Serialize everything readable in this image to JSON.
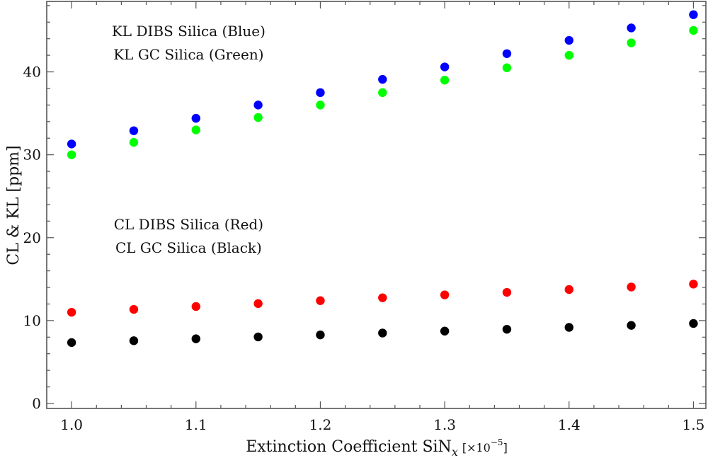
{
  "chart_data": {
    "type": "scatter",
    "title": "",
    "xlabel": "Extinction Coefficient  SiN",
    "xlabel_sub": "x",
    "xlabel_scale": "[×10",
    "xlabel_scale_exp": "−5",
    "xlabel_scale_close": "]",
    "ylabel": "CL & KL [ppm]",
    "xlim": [
      0.98,
      1.51
    ],
    "ylim": [
      -0.6,
      48.5
    ],
    "grid": false,
    "x_ticks": [
      1.0,
      1.1,
      1.2,
      1.3,
      1.4,
      1.5
    ],
    "x_tick_labels": [
      "1.0",
      "1.1",
      "1.2",
      "1.3",
      "1.4",
      "1.5"
    ],
    "y_ticks": [
      0,
      10,
      20,
      30,
      40
    ],
    "y_tick_labels": [
      "0",
      "10",
      "20",
      "30",
      "40"
    ],
    "x": [
      1.0,
      1.05,
      1.1,
      1.15,
      1.2,
      1.25,
      1.3,
      1.35,
      1.4,
      1.45,
      1.5
    ],
    "series": [
      {
        "name": "KL DIBS Silica",
        "color": "#0000ff",
        "values": [
          31.3,
          32.9,
          34.4,
          36.0,
          37.5,
          39.1,
          40.6,
          42.2,
          43.8,
          45.3,
          46.9
        ]
      },
      {
        "name": "KL GC Silica",
        "color": "#00ff00",
        "values": [
          30.0,
          31.5,
          33.0,
          34.5,
          36.0,
          37.5,
          39.0,
          40.5,
          42.0,
          43.5,
          45.0
        ]
      },
      {
        "name": "CL DIBS Silica",
        "color": "#ff0000",
        "values": [
          11.0,
          11.35,
          11.7,
          12.05,
          12.4,
          12.75,
          13.1,
          13.4,
          13.75,
          14.05,
          14.4
        ]
      },
      {
        "name": "CL GC Silica",
        "color": "#000000",
        "values": [
          7.35,
          7.57,
          7.8,
          8.03,
          8.27,
          8.5,
          8.73,
          8.95,
          9.18,
          9.42,
          9.65
        ]
      }
    ],
    "annotations": [
      {
        "text": "KL DIBS Silica (Blue)",
        "x": 1.04,
        "y": 44.3
      },
      {
        "text": "KL GC Silica (Green)",
        "x": 1.04,
        "y": 41.5
      },
      {
        "text": "CL DIBS Silica (Red)",
        "x": 1.04,
        "y": 21.0
      },
      {
        "text": "CL GC Silica (Black)",
        "x": 1.04,
        "y": 18.2
      }
    ]
  }
}
